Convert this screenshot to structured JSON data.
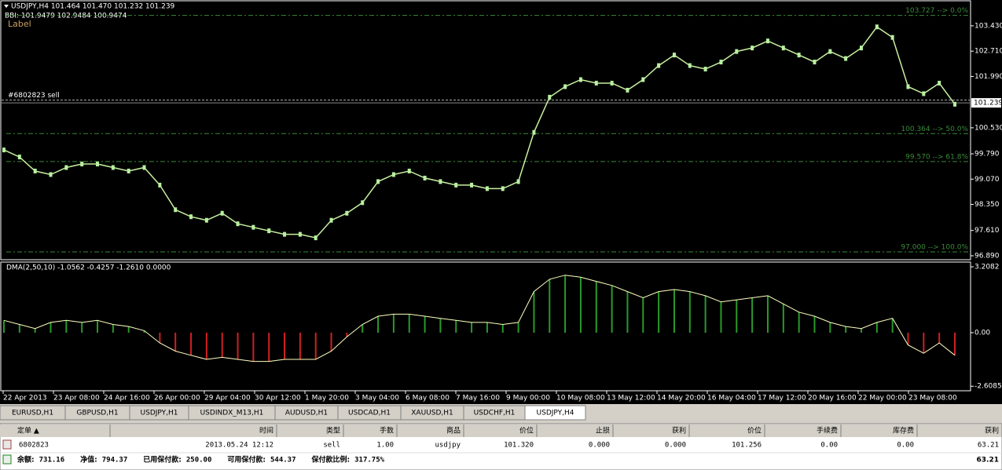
{
  "header": {
    "symbol_line": "USDJPY,H4  101.464 101.470 101.232 101.239",
    "bbi_line": "BBI: 101.9479 102.9484 100.9474",
    "label": "Label",
    "order_line": "#6802823 sell"
  },
  "price_chart": {
    "ylim": [
      96.8,
      104.12
    ],
    "yticks": [
      {
        "value": 103.43,
        "label": "103.430"
      },
      {
        "value": 102.71,
        "label": "102.710"
      },
      {
        "value": 101.99,
        "label": "101.990"
      },
      {
        "value": 100.53,
        "label": "100.530"
      },
      {
        "value": 99.79,
        "label": "99.790"
      },
      {
        "value": 99.07,
        "label": "99.070"
      },
      {
        "value": 98.35,
        "label": "98.350"
      },
      {
        "value": 97.61,
        "label": "97.610"
      },
      {
        "value": 96.89,
        "label": "96.890"
      }
    ],
    "current_price": {
      "value": 101.239,
      "label": "101.239"
    },
    "order_price": 101.32,
    "fib_levels": [
      {
        "value": 103.727,
        "label": "103.727 --> 0.0%"
      },
      {
        "value": 100.364,
        "label": "100.364 --> 50.0%"
      },
      {
        "value": 99.57,
        "label": "99.570 --> 61.8%"
      },
      {
        "value": 97.0,
        "label": "97.000 --> 100.0%"
      }
    ],
    "close": [
      99.9,
      99.7,
      99.3,
      99.2,
      99.4,
      99.5,
      99.5,
      99.4,
      99.3,
      99.4,
      98.9,
      98.2,
      98.0,
      97.9,
      98.1,
      97.8,
      97.7,
      97.6,
      97.5,
      97.5,
      97.4,
      97.9,
      98.1,
      98.4,
      99.0,
      99.2,
      99.3,
      99.1,
      99.0,
      98.9,
      98.9,
      98.8,
      98.8,
      99.0,
      100.4,
      101.4,
      101.7,
      101.9,
      101.8,
      101.8,
      101.6,
      101.9,
      102.3,
      102.6,
      102.3,
      102.2,
      102.4,
      102.7,
      102.8,
      103.0,
      102.8,
      102.6,
      102.4,
      102.7,
      102.5,
      102.8,
      103.4,
      103.1,
      101.7,
      101.5,
      101.8,
      101.2
    ]
  },
  "indicator": {
    "title": "DMA(2,50,10) -1.0562 -0.4257 -1.2610 0.0000",
    "ylim": [
      -2.79,
      3.4
    ],
    "yticks": [
      {
        "value": 3.2082,
        "label": "3.2082"
      },
      {
        "value": 0,
        "label": "0.00"
      },
      {
        "value": -2.6085,
        "label": "-2.6085"
      }
    ],
    "values": [
      0.6,
      0.4,
      0.2,
      0.5,
      0.6,
      0.5,
      0.6,
      0.4,
      0.3,
      0.1,
      -0.5,
      -0.9,
      -1.1,
      -1.3,
      -1.2,
      -1.3,
      -1.4,
      -1.4,
      -1.3,
      -1.3,
      -1.3,
      -0.9,
      -0.2,
      0.4,
      0.8,
      0.9,
      0.9,
      0.8,
      0.7,
      0.6,
      0.5,
      0.5,
      0.4,
      0.5,
      2.0,
      2.6,
      2.8,
      2.7,
      2.5,
      2.3,
      2.0,
      1.7,
      2.0,
      2.1,
      2.0,
      1.8,
      1.5,
      1.6,
      1.7,
      1.8,
      1.4,
      1.0,
      0.8,
      0.5,
      0.3,
      0.2,
      0.5,
      0.7,
      -0.6,
      -1.0,
      -0.5,
      -1.1
    ]
  },
  "time_axis": [
    "22 Apr 2013",
    "23 Apr 08:00",
    "24 Apr 16:00",
    "26 Apr 00:00",
    "29 Apr 04:00",
    "30 Apr 12:00",
    "1 May 20:00",
    "3 May 04:00",
    "6 May 08:00",
    "7 May 16:00",
    "9 May 00:00",
    "10 May 08:00",
    "13 May 12:00",
    "14 May 20:00",
    "16 May 04:00",
    "17 May 12:00",
    "20 May 16:00",
    "22 May 00:00",
    "23 May 08:00"
  ],
  "tabs": [
    "EURUSD,H1",
    "GBPUSD,H1",
    "USDJPY,H1",
    "USDINDX_M13,H1",
    "AUDUSD,H1",
    "USDCAD,H1",
    "XAUUSD,H1",
    "USDCHF,H1",
    "USDJPY,H4"
  ],
  "table": {
    "columns": [
      "定单 ▲",
      "时间",
      "类型",
      "手数",
      "商品",
      "价位",
      "止损",
      "获利",
      "价位",
      "手续费",
      "库存费",
      "获利"
    ],
    "rows": [
      [
        "6802823",
        "2013.05.24 12:12",
        "sell",
        "1.00",
        "usdjpy",
        "101.320",
        "0.000",
        "0.000",
        "101.256",
        "0.00",
        "0.00",
        "63.21"
      ]
    ],
    "summary": [
      [
        "余额:",
        "731.16"
      ],
      [
        "净值:",
        "794.37"
      ],
      [
        "已用保付款:",
        "250.00"
      ],
      [
        "可用保付款:",
        "544.37"
      ],
      [
        "保付款比例:",
        "317.75%"
      ]
    ],
    "summary_total": "63.21"
  }
}
